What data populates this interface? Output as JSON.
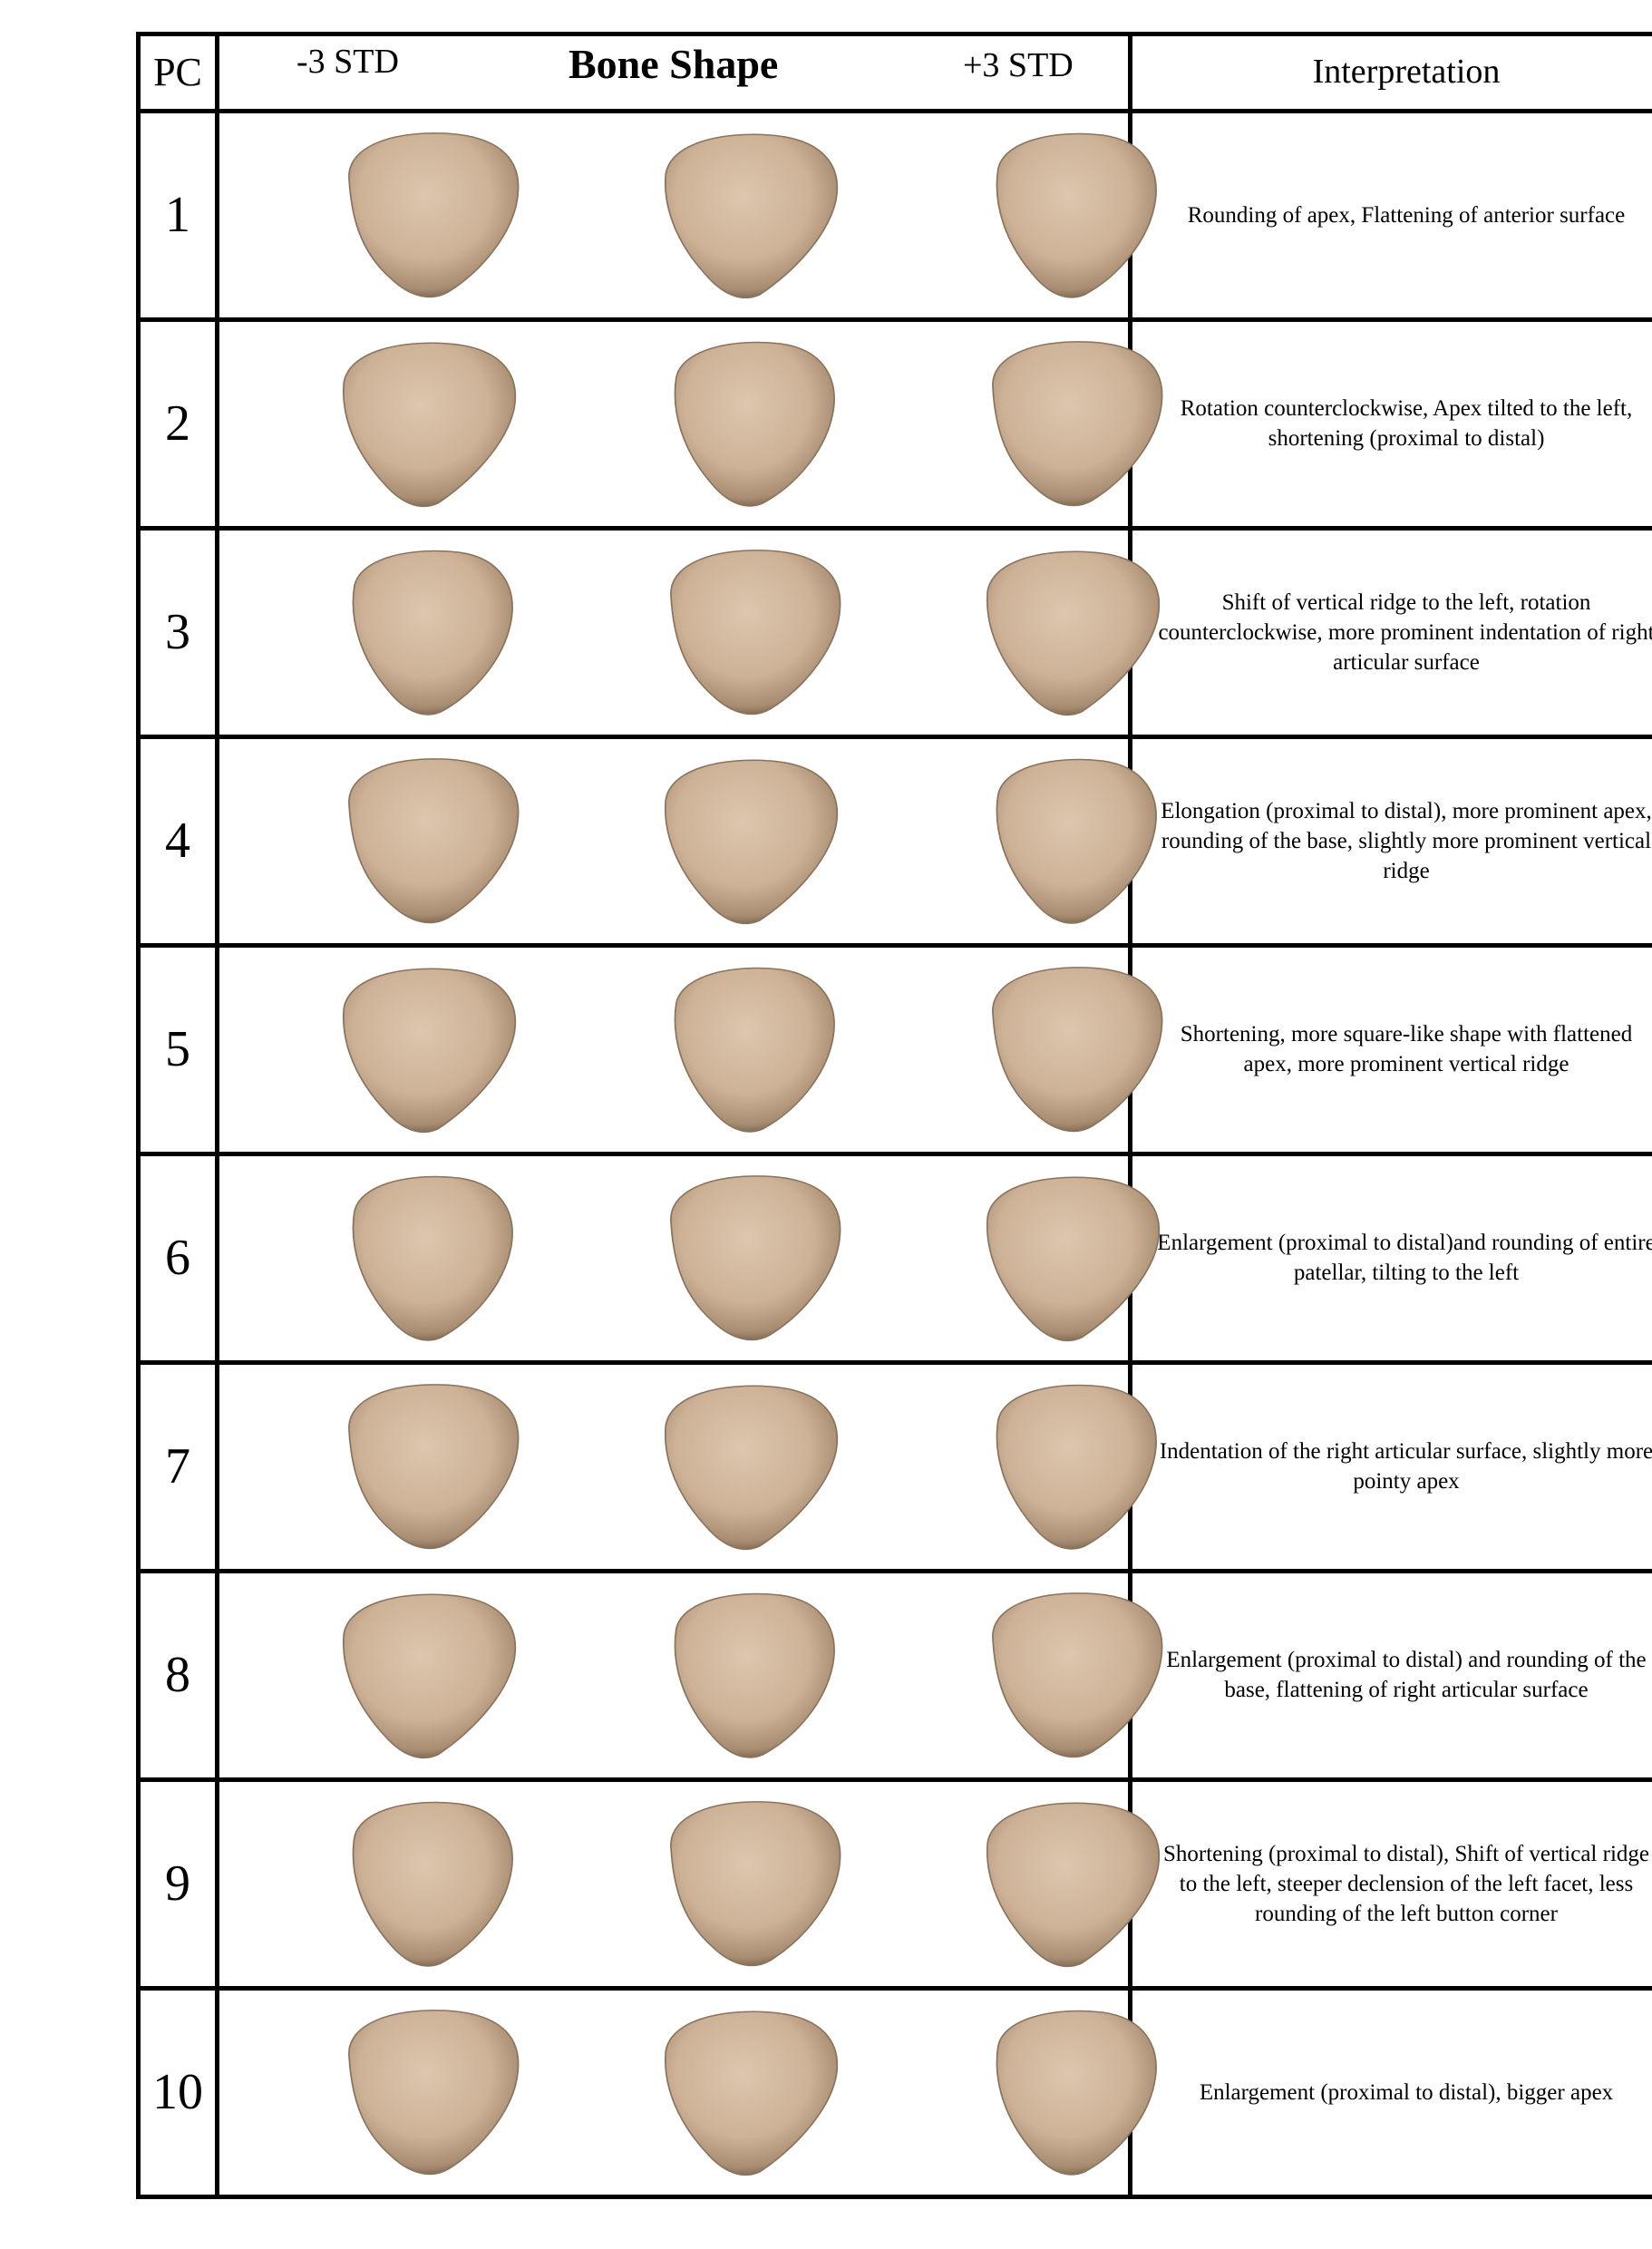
{
  "header": {
    "pc": "PC",
    "minus_std": "-3 STD",
    "title": "Bone Shape",
    "plus_std": "+3 STD",
    "interpretation": "Interpretation"
  },
  "colors": {
    "bone_light": "#d9c2a9",
    "bone_mid": "#c8ad92",
    "bone_dark": "#7d6650",
    "border": "#000000"
  },
  "rows": [
    {
      "pc": "1",
      "text": "Rounding of apex, Flattening of anterior surface"
    },
    {
      "pc": "2",
      "text": "Rotation counterclockwise, Apex tilted to the left, shortening (proximal to distal)"
    },
    {
      "pc": "3",
      "text": "Shift of vertical ridge to the left, rotation counterclockwise, more prominent indentation of right articular surface"
    },
    {
      "pc": "4",
      "text": "Elongation (proximal to distal), more prominent apex, rounding of the base, slightly more prominent vertical ridge"
    },
    {
      "pc": "5",
      "text": "Shortening, more square-like shape with flattened apex, more prominent vertical ridge"
    },
    {
      "pc": "6",
      "text": "Enlargement (proximal to distal)and rounding of entire patellar, tilting to the left"
    },
    {
      "pc": "7",
      "text": "Indentation of the right articular surface, slightly more pointy apex"
    },
    {
      "pc": "8",
      "text": "Enlargement (proximal to distal) and rounding of the base, flattening of right articular surface"
    },
    {
      "pc": "9",
      "text": "Shortening (proximal to distal), Shift of vertical ridge to the left, steeper declension of the left facet, less rounding of the left button corner"
    },
    {
      "pc": "10",
      "text": "Enlargement (proximal to distal), bigger apex"
    }
  ]
}
